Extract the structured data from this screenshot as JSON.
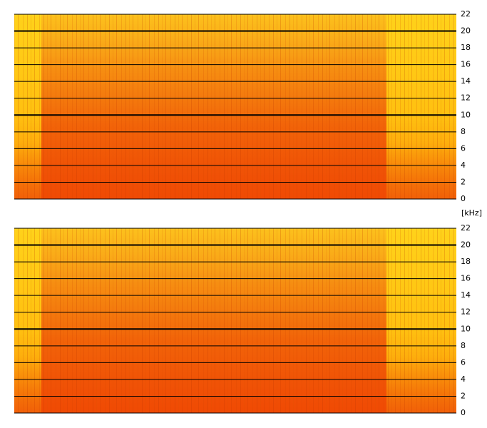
{
  "chart_data": [
    {
      "type": "spectrogram",
      "ylim": [
        0,
        22
      ],
      "yticks": [
        0,
        2,
        4,
        6,
        8,
        10,
        12,
        14,
        16,
        18,
        20,
        22
      ],
      "major_ticks": [
        10,
        20
      ],
      "grid": true,
      "ylabel": "[kHz]"
    },
    {
      "type": "spectrogram",
      "ylim": [
        0,
        22
      ],
      "yticks": [
        0,
        2,
        4,
        6,
        8,
        10,
        12,
        14,
        16,
        18,
        20,
        22
      ],
      "major_ticks": [
        10,
        20
      ],
      "grid": true
    }
  ]
}
